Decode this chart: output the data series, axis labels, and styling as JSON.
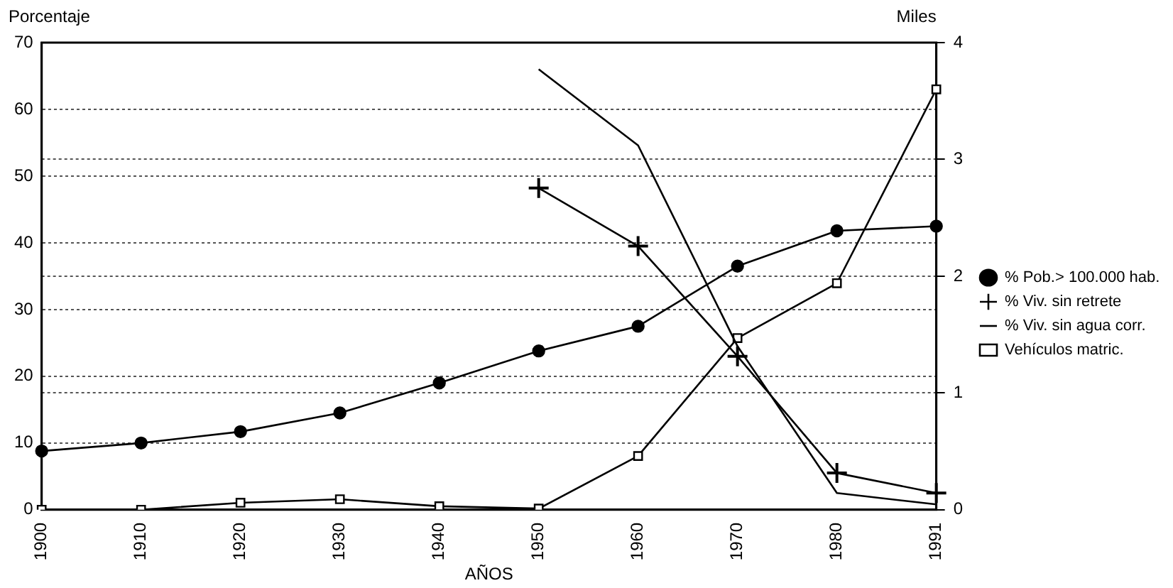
{
  "chart_data": {
    "type": "line",
    "categories": [
      "1900",
      "1910",
      "1920",
      "1930",
      "1940",
      "1950",
      "1960",
      "1970",
      "1980",
      "1991"
    ],
    "series": [
      {
        "name": "% Pob.> 100.000 hab.",
        "color": "#000000",
        "marker": "circle",
        "values": [
          8.8,
          10,
          11.7,
          14.5,
          19,
          23.8,
          27.5,
          36.5,
          41.8,
          42.5
        ]
      },
      {
        "name": "% Viv. sin retrete",
        "color": "#000000",
        "marker": "cross",
        "values": [
          null,
          null,
          null,
          null,
          null,
          48.2,
          39.5,
          23,
          5.5,
          2.5
        ]
      },
      {
        "name": "% Viv. sin agua corr.",
        "color": "#000000",
        "marker": "none",
        "values": [
          null,
          null,
          null,
          null,
          null,
          66,
          54.6,
          24.5,
          2.5,
          0.8
        ]
      },
      {
        "name": "Vehículos matric.",
        "color": "#000000",
        "marker": "square",
        "axis": "y2",
        "values": [
          0,
          0,
          0.06,
          0.09,
          0.03,
          0.01,
          0.46,
          1.47,
          1.94,
          3.6
        ]
      }
    ],
    "xlabel": "AÑOS",
    "ylabel": "Porcentaje",
    "y2label": "Miles",
    "ylim": [
      0,
      70
    ],
    "yticks": [
      0,
      10,
      20,
      30,
      40,
      50,
      60,
      70
    ],
    "y2lim": [
      0,
      4
    ],
    "y2ticks": [
      0,
      1,
      2,
      3,
      4
    ],
    "grid": "y",
    "legend": "right",
    "line_style": "solid"
  }
}
